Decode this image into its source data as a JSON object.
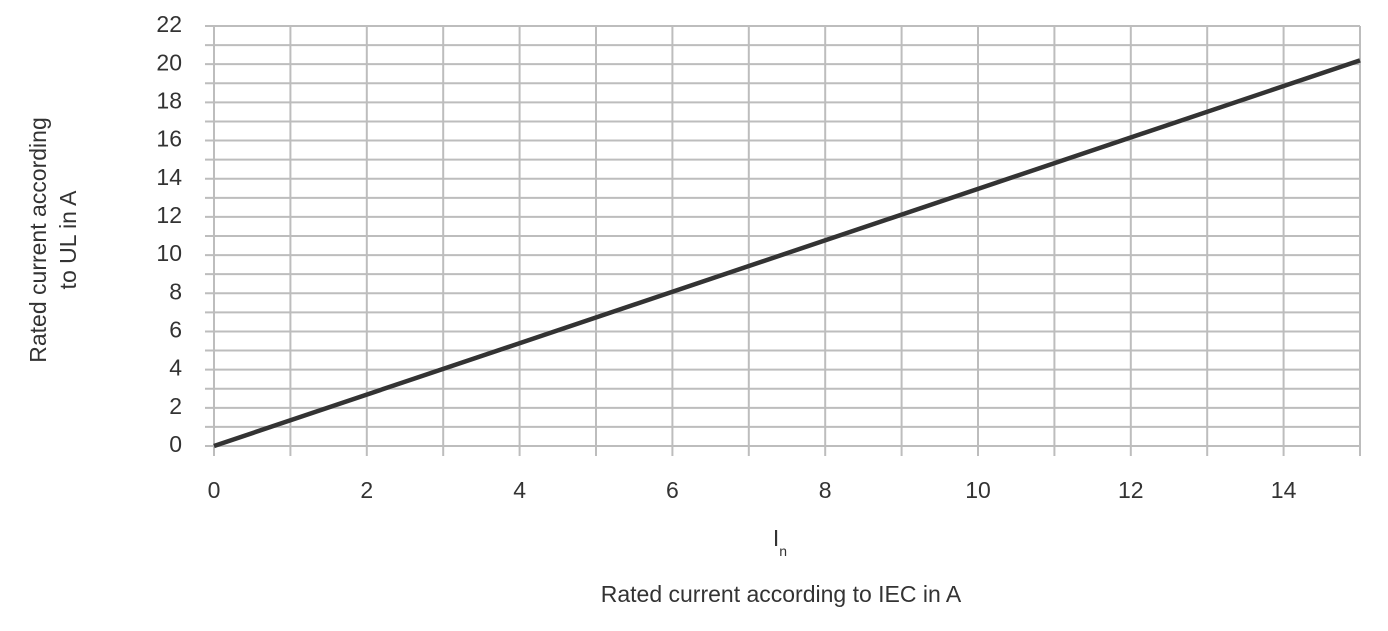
{
  "chart_data": {
    "type": "line",
    "y_title_lines": [
      "Rated current according",
      "to UL in A"
    ],
    "x_symbol": {
      "main": "I",
      "sub": "n"
    },
    "x_title": "Rated current according to IEC in A",
    "x": [
      0,
      15
    ],
    "series": [
      {
        "color": "#333333",
        "values": [
          0,
          20.2
        ]
      }
    ],
    "xlim": [
      0,
      15
    ],
    "xticks": [
      0,
      2,
      4,
      6,
      8,
      10,
      12,
      14
    ],
    "ylim": [
      0,
      22
    ],
    "yticks": [
      0,
      2,
      4,
      6,
      8,
      10,
      12,
      14,
      16,
      18,
      20,
      22
    ],
    "xgrid": [
      0,
      1,
      2,
      3,
      4,
      5,
      6,
      7,
      8,
      9,
      10,
      11,
      12,
      13,
      14,
      15
    ],
    "ygrid": [
      0,
      1,
      2,
      3,
      4,
      5,
      6,
      7,
      8,
      9,
      10,
      11,
      12,
      13,
      14,
      15,
      16,
      17,
      18,
      19,
      20,
      21,
      22
    ],
    "grid": true
  }
}
